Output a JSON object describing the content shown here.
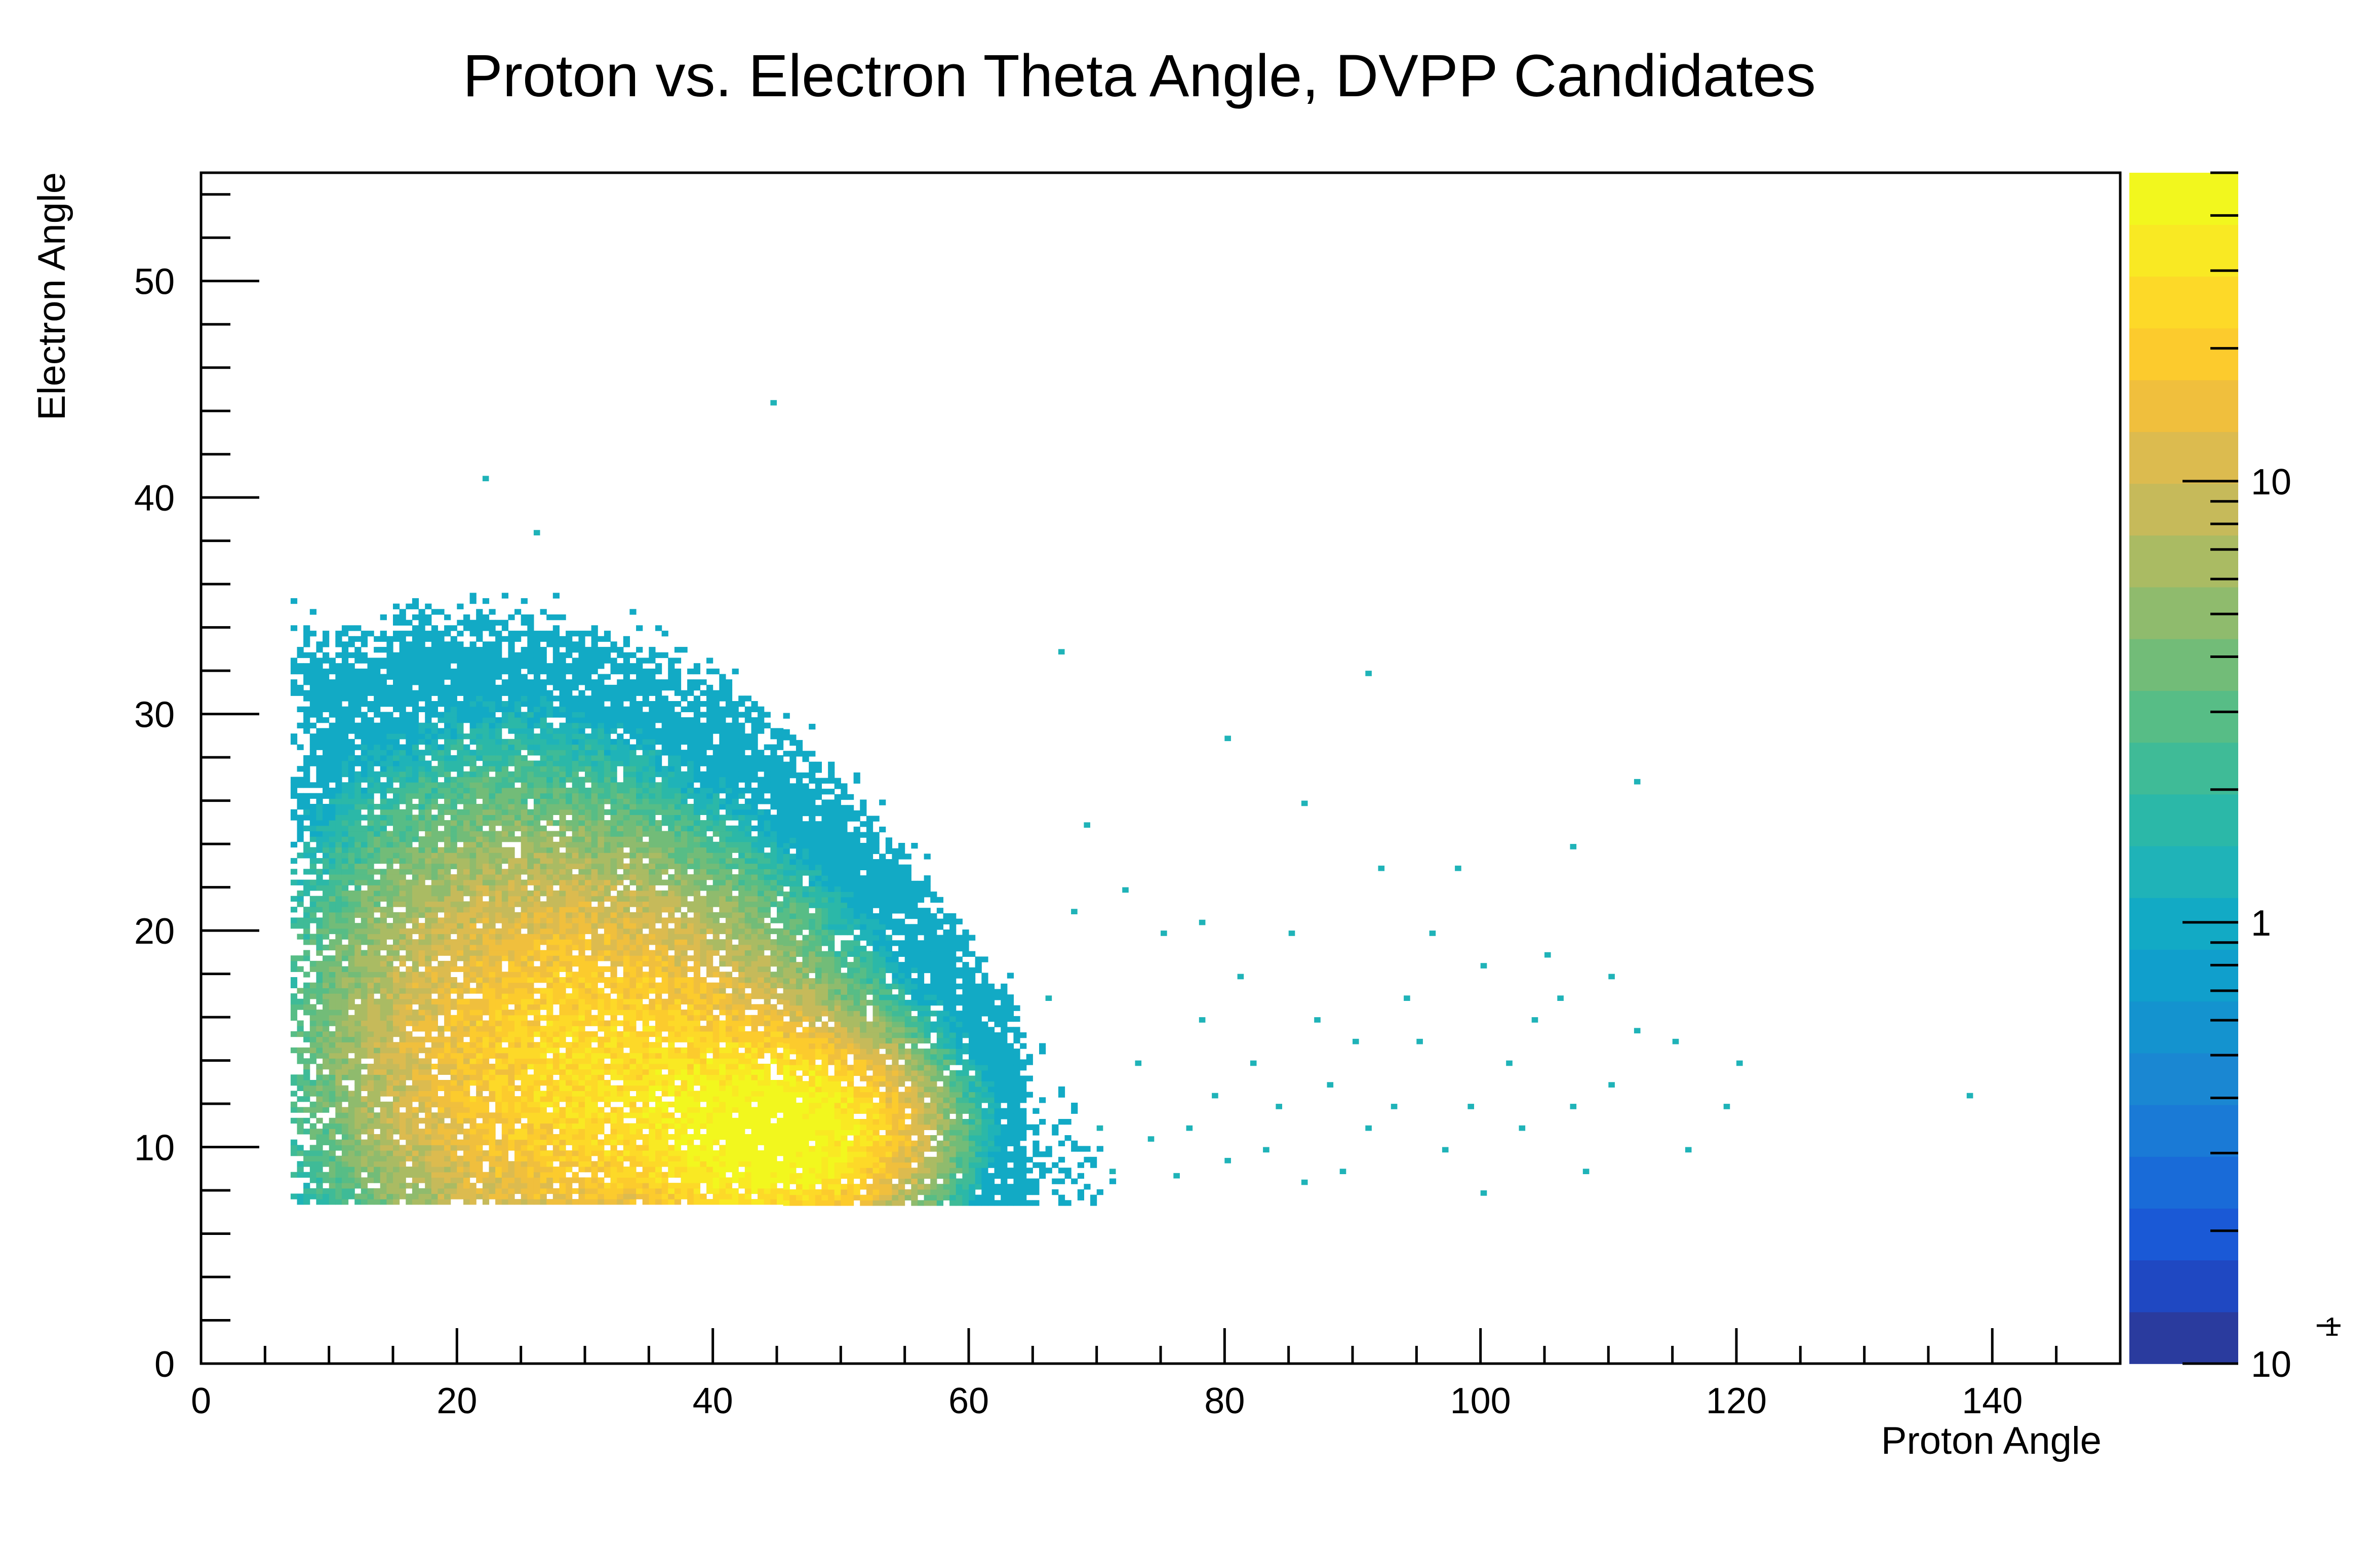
{
  "chart_data": {
    "type": "heatmap",
    "title": "Proton vs. Electron Theta Angle, DVPP Candidates",
    "xlabel": "Proton Angle",
    "ylabel": "Electron Angle",
    "xlim": [
      0,
      150
    ],
    "ylim": [
      0,
      55
    ],
    "x_ticks": [
      0,
      20,
      40,
      60,
      80,
      100,
      120,
      140
    ],
    "x_tick_labels": [
      "0",
      "20",
      "40",
      "60",
      "80",
      "100",
      "120",
      "140"
    ],
    "y_ticks": [
      0,
      10,
      20,
      30,
      40,
      50
    ],
    "y_tick_labels": [
      "0",
      "10",
      "20",
      "30",
      "40",
      "50"
    ],
    "grid": false,
    "legend": "none",
    "colorbar": {
      "scale": "log",
      "range": [
        0.1,
        50
      ],
      "labels": [
        "10",
        "1",
        "10"
      ],
      "exponent_marker": "1",
      "palette": [
        "#2a3b9e",
        "#1f48c2",
        "#1a59d6",
        "#196bd8",
        "#1a7ad6",
        "#1a87d2",
        "#1493cf",
        "#109fcc",
        "#12aac5",
        "#1fb3b8",
        "#2bb8a8",
        "#3fbb97",
        "#57bd86",
        "#72bc78",
        "#8fbb6d",
        "#aabb63",
        "#c6ba5a",
        "#dcbb4f",
        "#f0bf3d",
        "#fccb2d",
        "#fdd928",
        "#f9e923",
        "#f2f71e"
      ]
    },
    "density_clusters": [
      {
        "x": 45,
        "y": 10.5,
        "peak_count": 50,
        "sigma_x": 6,
        "sigma_y": 2.5
      },
      {
        "x": 32,
        "y": 13,
        "peak_count": 20,
        "sigma_x": 10,
        "sigma_y": 5
      },
      {
        "x": 24,
        "y": 16,
        "peak_count": 8,
        "sigma_x": 10,
        "sigma_y": 7
      }
    ],
    "sparse_points": [
      [
        44.5,
        44.5
      ],
      [
        22,
        41
      ],
      [
        26,
        38.5
      ],
      [
        67,
        33
      ],
      [
        91,
        32
      ],
      [
        80,
        29
      ],
      [
        112,
        27
      ],
      [
        86,
        26
      ],
      [
        107,
        24
      ],
      [
        98,
        23
      ],
      [
        92,
        23
      ],
      [
        120,
        14
      ],
      [
        138,
        12.5
      ],
      [
        116,
        10
      ],
      [
        119,
        12
      ],
      [
        110,
        18
      ],
      [
        106,
        17
      ],
      [
        103,
        11
      ],
      [
        100,
        8
      ],
      [
        95,
        15
      ],
      [
        88,
        13
      ],
      [
        84,
        12
      ],
      [
        80,
        9.5
      ],
      [
        78,
        16
      ],
      [
        75,
        20
      ],
      [
        73,
        14
      ],
      [
        70,
        11
      ],
      [
        68,
        21
      ],
      [
        66,
        17
      ],
      [
        105,
        19
      ],
      [
        100,
        18.5
      ],
      [
        96,
        20
      ],
      [
        94,
        17
      ],
      [
        90,
        15
      ],
      [
        85,
        20
      ],
      [
        82,
        14
      ],
      [
        77,
        11
      ],
      [
        72,
        22
      ],
      [
        69,
        25
      ],
      [
        110,
        13
      ],
      [
        108,
        9
      ],
      [
        112,
        15.5
      ],
      [
        115,
        15
      ],
      [
        97,
        10
      ],
      [
        93,
        12
      ],
      [
        89,
        9
      ],
      [
        86,
        8.5
      ],
      [
        83,
        10
      ],
      [
        79,
        12.5
      ],
      [
        76,
        8.8
      ],
      [
        74,
        10.5
      ],
      [
        71,
        9
      ],
      [
        102,
        14
      ],
      [
        99,
        12
      ],
      [
        91,
        11
      ],
      [
        87,
        16
      ],
      [
        81,
        18
      ],
      [
        78,
        20.5
      ],
      [
        104,
        16
      ],
      [
        107,
        12
      ]
    ]
  }
}
